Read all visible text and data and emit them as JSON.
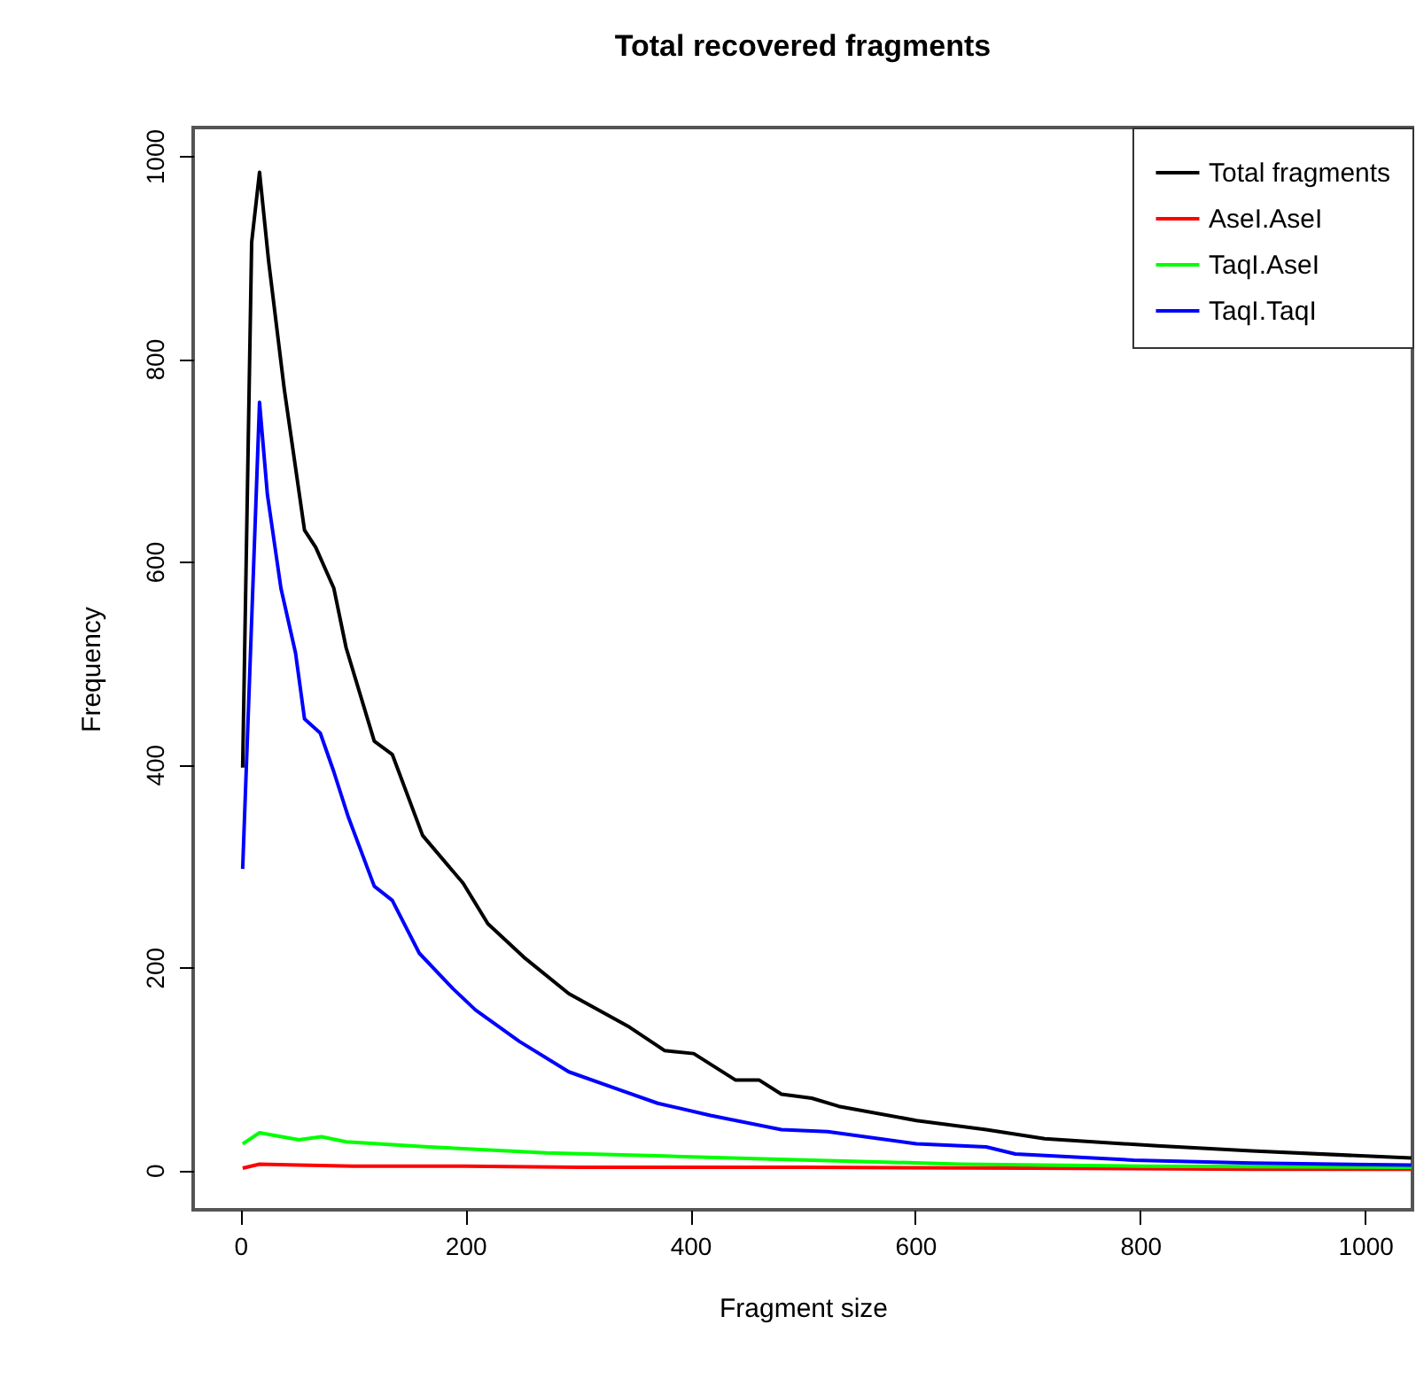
{
  "chart_data": {
    "type": "line",
    "title": "Total recovered fragments",
    "xlabel": "Fragment size",
    "ylabel": "Frequency",
    "xlim": [
      -42,
      1042
    ],
    "ylim": [
      -39,
      1028
    ],
    "xticks": [
      0,
      200,
      400,
      600,
      800,
      1000
    ],
    "yticks": [
      0,
      200,
      400,
      600,
      800,
      1000
    ],
    "grid": false,
    "legend": "top right",
    "line_style": "solid",
    "marker": "none",
    "series": [
      {
        "name": "Total fragments",
        "color": "#000000",
        "x": [
          2,
          10,
          17,
          25,
          39,
          57,
          67,
          83,
          94,
          119,
          135,
          162,
          198,
          220,
          252,
          292,
          346,
          377,
          403,
          440,
          461,
          481,
          508,
          532,
          601,
          663,
          715,
          815,
          899,
          1041
        ],
        "values": [
          397,
          915,
          984,
          897,
          770,
          631,
          614,
          574,
          515,
          423,
          410,
          330,
          283,
          243,
          210,
          174,
          141,
          118,
          115,
          89,
          89,
          75,
          71,
          63,
          49,
          40,
          31,
          24,
          19,
          12
        ]
      },
      {
        "name": "AseI.AseI",
        "color": "#ff0000",
        "x": [
          2,
          17,
          52,
          100,
          200,
          300,
          500,
          700,
          900,
          1041
        ],
        "values": [
          2,
          6,
          5,
          4,
          4,
          3,
          3,
          2,
          1,
          1
        ]
      },
      {
        "name": "TaqI.AseI",
        "color": "#00ff00",
        "x": [
          2,
          17,
          52,
          72,
          94,
          167,
          272,
          377,
          508,
          640,
          800,
          1041
        ],
        "values": [
          26,
          37,
          30,
          33,
          28,
          23,
          17,
          14,
          10,
          6,
          4,
          3
        ]
      },
      {
        "name": "TaqI.TaqI",
        "color": "#0000ff",
        "x": [
          2,
          17,
          24,
          36,
          49,
          57,
          71,
          83,
          96,
          119,
          135,
          159,
          189,
          209,
          248,
          292,
          335,
          371,
          418,
          481,
          522,
          601,
          663,
          689,
          794,
          899,
          1041
        ],
        "values": [
          297,
          757,
          666,
          574,
          510,
          445,
          431,
          393,
          348,
          280,
          266,
          214,
          179,
          158,
          127,
          97,
          80,
          66,
          54,
          40,
          38,
          26,
          23,
          16,
          10,
          7,
          5
        ]
      }
    ]
  }
}
